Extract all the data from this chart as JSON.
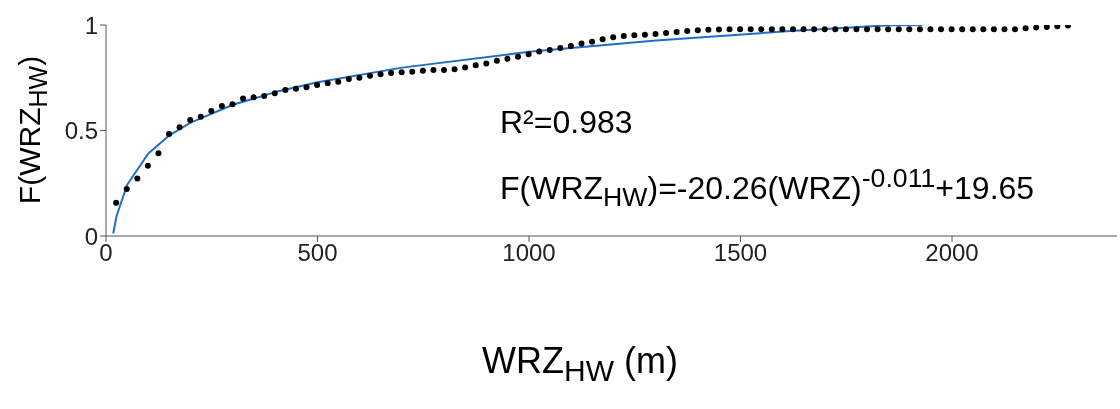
{
  "chart_data": {
    "type": "scatter",
    "xlabel": "WRZ$_{HW}$ (m)",
    "ylabel": "F(WRZ$_{HW}$)",
    "annotations": [
      "R²=0.983",
      "F(WRZ$_{HW}$)=-20.26(WRZ)$^{-0.011}$+19.65"
    ],
    "xlim": [
      0,
      2390
    ],
    "ylim": [
      0,
      1
    ],
    "xticks": [
      0,
      500,
      1000,
      1500,
      2000
    ],
    "yticks": [
      0,
      0.5,
      1
    ],
    "grid": false,
    "legend": false,
    "marker": "circle",
    "series": [
      {
        "type": "scatter",
        "color": "#000000",
        "x": [
          24,
          49,
          74,
          99,
          124,
          149,
          174,
          199,
          224,
          249,
          274,
          299,
          324,
          349,
          374,
          399,
          424,
          449,
          474,
          499,
          524,
          549,
          574,
          599,
          624,
          649,
          674,
          699,
          724,
          749,
          774,
          799,
          824,
          849,
          874,
          899,
          924,
          949,
          974,
          999,
          1024,
          1049,
          1074,
          1099,
          1124,
          1149,
          1174,
          1199,
          1224,
          1249,
          1274,
          1299,
          1324,
          1349,
          1374,
          1399,
          1424,
          1449,
          1474,
          1499,
          1524,
          1549,
          1574,
          1599,
          1624,
          1649,
          1674,
          1699,
          1724,
          1749,
          1774,
          1799,
          1824,
          1849,
          1874,
          1899,
          1924,
          1949,
          1974,
          1999,
          2024,
          2049,
          2074,
          2099,
          2124,
          2149,
          2174,
          2199,
          2224,
          2249,
          2274
        ],
        "values": [
          0.158,
          0.223,
          0.273,
          0.333,
          0.392,
          0.483,
          0.515,
          0.55,
          0.565,
          0.592,
          0.616,
          0.625,
          0.652,
          0.657,
          0.664,
          0.676,
          0.692,
          0.698,
          0.705,
          0.716,
          0.724,
          0.731,
          0.744,
          0.75,
          0.76,
          0.766,
          0.773,
          0.776,
          0.779,
          0.783,
          0.787,
          0.787,
          0.79,
          0.799,
          0.809,
          0.818,
          0.831,
          0.84,
          0.85,
          0.861,
          0.874,
          0.882,
          0.891,
          0.9,
          0.912,
          0.921,
          0.932,
          0.942,
          0.948,
          0.951,
          0.954,
          0.957,
          0.962,
          0.967,
          0.972,
          0.975,
          0.978,
          0.979,
          0.98,
          0.98,
          0.98,
          0.98,
          0.98,
          0.98,
          0.98,
          0.98,
          0.98,
          0.98,
          0.98,
          0.98,
          0.98,
          0.98,
          0.98,
          0.98,
          0.98,
          0.98,
          0.98,
          0.98,
          0.98,
          0.98,
          0.98,
          0.98,
          0.98,
          0.98,
          0.98,
          0.98,
          0.985,
          0.988,
          0.991,
          0.994,
          0.998
        ]
      },
      {
        "type": "line",
        "color": "#1f6fc5",
        "marker": "none",
        "x": [
          17,
          25,
          50,
          100,
          150,
          200,
          300,
          400,
          500,
          700,
          1000,
          1300,
          1600,
          1850,
          1930
        ],
        "values": [
          0.012,
          0.095,
          0.243,
          0.391,
          0.477,
          0.537,
          0.622,
          0.682,
          0.729,
          0.798,
          0.873,
          0.926,
          0.969,
          0.999,
          1.0
        ]
      }
    ]
  }
}
